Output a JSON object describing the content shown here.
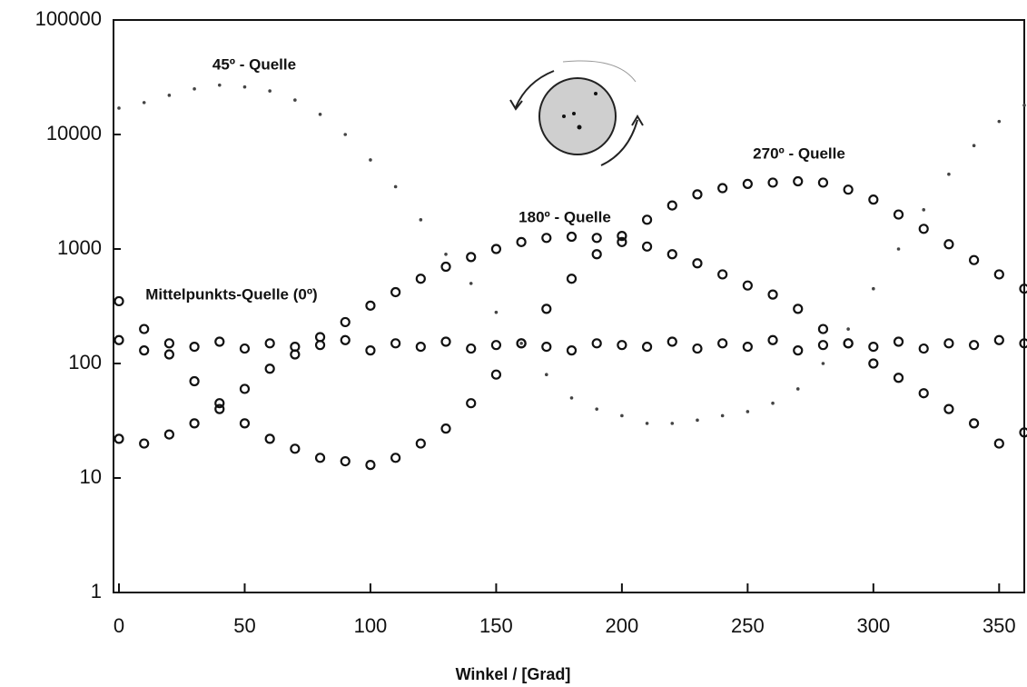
{
  "chart_data": {
    "type": "scatter",
    "x_label": "Winkel / [Grad]",
    "annotations": [
      "45º - Quelle",
      "270º - Quelle",
      "180º - Quelle",
      "Mittelpunkts-Quelle (0º)"
    ],
    "x": [
      0,
      10,
      20,
      30,
      40,
      50,
      60,
      70,
      80,
      90,
      100,
      110,
      120,
      130,
      140,
      150,
      160,
      170,
      180,
      190,
      200,
      210,
      220,
      230,
      240,
      250,
      260,
      270,
      280,
      290,
      300,
      310,
      320,
      330,
      340,
      350,
      360
    ],
    "xlim": [
      0,
      360
    ],
    "xticks": [
      0,
      50,
      100,
      150,
      200,
      250,
      300,
      350
    ],
    "ylim": [
      1,
      100000
    ],
    "yticks": [
      1,
      10,
      100,
      1000,
      10000,
      100000
    ],
    "log_y": true,
    "series": [
      {
        "name": "45º - Quelle",
        "color": "#444444",
        "marker": "dot",
        "values": [
          17000,
          19000,
          22000,
          25000,
          27000,
          26000,
          24000,
          20000,
          15000,
          10000,
          6000,
          3500,
          1800,
          900,
          500,
          280,
          150,
          80,
          50,
          40,
          35,
          30,
          30,
          32,
          35,
          38,
          45,
          60,
          100,
          200,
          450,
          1000,
          2200,
          4500,
          8000,
          13000,
          18000
        ]
      },
      {
        "name": "180º - Quelle",
        "color": "#111111",
        "marker": "circle",
        "values": [
          22,
          20,
          24,
          30,
          40,
          60,
          90,
          120,
          170,
          230,
          320,
          420,
          550,
          700,
          850,
          1000,
          1150,
          1250,
          1280,
          1250,
          1150,
          1050,
          900,
          750,
          600,
          480,
          400,
          300,
          200,
          150,
          100,
          75,
          55,
          40,
          30,
          20,
          25
        ]
      },
      {
        "name": "270º - Quelle",
        "color": "#111111",
        "marker": "circle",
        "values": [
          350,
          200,
          120,
          70,
          45,
          30,
          22,
          18,
          15,
          14,
          13,
          15,
          20,
          27,
          45,
          80,
          150,
          300,
          550,
          900,
          1300,
          1800,
          2400,
          3000,
          3400,
          3700,
          3800,
          3900,
          3800,
          3300,
          2700,
          2000,
          1500,
          1100,
          800,
          600,
          450
        ]
      },
      {
        "name": "Mittelpunkts-Quelle (0º)",
        "color": "#111111",
        "marker": "circle",
        "values": [
          160,
          130,
          150,
          140,
          155,
          135,
          150,
          140,
          145,
          160,
          130,
          150,
          140,
          155,
          135,
          145,
          150,
          140,
          130,
          150,
          145,
          140,
          155,
          135,
          150,
          140,
          160,
          130,
          145,
          150,
          140,
          155,
          135,
          150,
          145,
          160,
          150
        ]
      }
    ]
  }
}
